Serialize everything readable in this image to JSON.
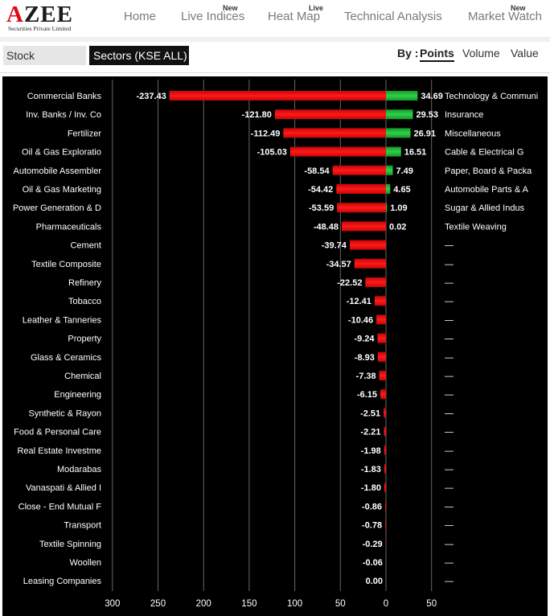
{
  "brand": {
    "logo_text": "AZEE",
    "logo_subtitle": "Securities Private Limited"
  },
  "nav": {
    "items": [
      {
        "label": "Home",
        "badge": ""
      },
      {
        "label": "Live Indices",
        "badge": "New"
      },
      {
        "label": "Heat Map",
        "badge": "Live"
      },
      {
        "label": "Technical Analysis",
        "badge": ""
      },
      {
        "label": "Market Watch",
        "badge": "New"
      }
    ]
  },
  "tabs": {
    "stock": "Stock",
    "sectors": "Sectors (KSE ALL)"
  },
  "sort": {
    "label": "By :",
    "options": [
      "Points",
      "Volume",
      "Value"
    ],
    "selected": "Points"
  },
  "colors": {
    "negative": "#e30e0e",
    "positive": "#1fb83a",
    "background": "#000000",
    "text": "#ffffff"
  },
  "chart_data": {
    "type": "bar",
    "orientation": "horizontal",
    "xlim": [
      300,
      -50
    ],
    "x_ticks": [
      "300",
      "250",
      "200",
      "150",
      "100",
      "50",
      "0",
      "50"
    ],
    "grid": true,
    "losers": {
      "categories": [
        "Commercial Banks",
        "Inv. Banks / Inv. Co",
        "Fertilizer",
        "Oil & Gas Exploratio",
        "Automobile Assembler",
        "Oil & Gas Marketing",
        "Power Generation & D",
        "Pharmaceuticals",
        "Cement",
        "Textile Composite",
        "Refinery",
        "Tobacco",
        "Leather & Tanneries",
        "Property",
        "Glass & Ceramics",
        "Chemical",
        "Engineering",
        "Synthetic & Rayon",
        "Food & Personal Care",
        "Real Estate Investme",
        "Modarabas",
        "Vanaspati & Allied I",
        "Close - End Mutual F",
        "Transport",
        "Textile Spinning",
        "Woollen",
        "Leasing Companies"
      ],
      "values": [
        -237.43,
        -121.8,
        -112.49,
        -105.03,
        -58.54,
        -54.42,
        -53.59,
        -48.48,
        -39.74,
        -34.57,
        -22.52,
        -12.41,
        -10.46,
        -9.24,
        -8.93,
        -7.38,
        -6.15,
        -2.51,
        -2.21,
        -1.98,
        -1.83,
        -1.8,
        -0.86,
        -0.78,
        -0.29,
        -0.06,
        0.0
      ],
      "labels": [
        "-237.43",
        "-121.80",
        "-112.49",
        "-105.03",
        "-58.54",
        "-54.42",
        "-53.59",
        "-48.48",
        "-39.74",
        "-34.57",
        "-22.52",
        "-12.41",
        "-10.46",
        "-9.24",
        "-8.93",
        "-7.38",
        "-6.15",
        "-2.51",
        "-2.21",
        "-1.98",
        "-1.83",
        "-1.80",
        "-0.86",
        "-0.78",
        "-0.29",
        "-0.06",
        "0.00"
      ]
    },
    "gainers": {
      "categories": [
        "Technology & Communi",
        "Insurance",
        "Miscellaneous",
        "Cable & Electrical G",
        "Paper, Board & Packa",
        "Automobile Parts & A",
        "Sugar & Allied Indus",
        "Textile Weaving"
      ],
      "values": [
        34.69,
        29.53,
        26.91,
        16.51,
        7.49,
        4.65,
        1.09,
        0.02
      ],
      "labels": [
        "34.69",
        "29.53",
        "26.91",
        "16.51",
        "7.49",
        "4.65",
        "1.09",
        "0.02"
      ],
      "empty_placeholder": "—"
    }
  }
}
